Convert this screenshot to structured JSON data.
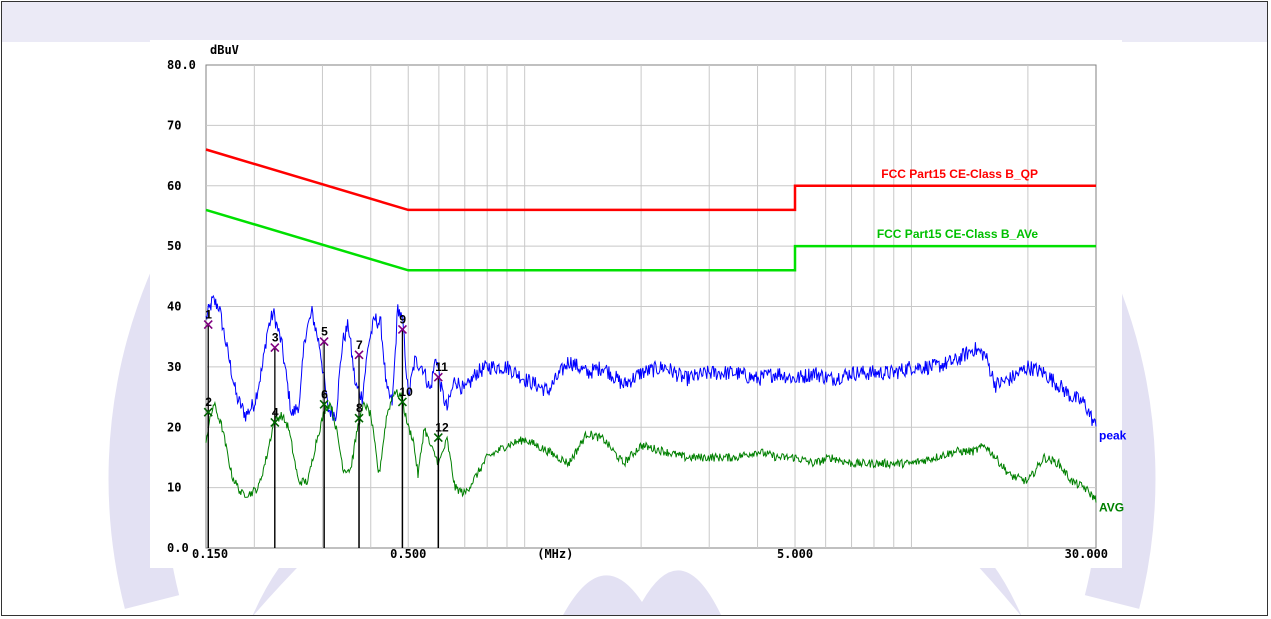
{
  "chart_data": {
    "type": "line",
    "yunit": "dBuV",
    "xunit": "(MHz)",
    "xscale": "log",
    "xlim": [
      0.15,
      30
    ],
    "ylim": [
      0,
      80
    ],
    "y_ticks": [
      {
        "value": 80,
        "label": "80.0"
      },
      {
        "value": 70,
        "label": "70"
      },
      {
        "value": 60,
        "label": "60"
      },
      {
        "value": 50,
        "label": "50"
      },
      {
        "value": 40,
        "label": "40"
      },
      {
        "value": 30,
        "label": "30"
      },
      {
        "value": 20,
        "label": "20"
      },
      {
        "value": 10,
        "label": "10"
      },
      {
        "value": 0,
        "label": "0.0"
      }
    ],
    "x_ticks": [
      {
        "value": 0.15,
        "label": "0.150"
      },
      {
        "value": 0.5,
        "label": "0.500"
      },
      {
        "value": 1.2,
        "label": "(MHz)"
      },
      {
        "value": 5,
        "label": "5.000"
      },
      {
        "value": 30,
        "label": "30.000"
      }
    ],
    "grid": true,
    "limits": [
      {
        "name": "FCC Part15 CE-Class B_QP",
        "color": "#ff0000",
        "points": [
          [
            0.15,
            66
          ],
          [
            0.5,
            56
          ],
          [
            5,
            56
          ],
          [
            5,
            60
          ],
          [
            30,
            60
          ]
        ]
      },
      {
        "name": "FCC Part15 CE-Class B_AVe",
        "color": "#00e000",
        "points": [
          [
            0.15,
            56
          ],
          [
            0.5,
            46
          ],
          [
            5,
            46
          ],
          [
            5,
            50
          ],
          [
            30,
            50
          ]
        ]
      }
    ],
    "series": [
      {
        "name": "peak",
        "color": "#0000ff",
        "noise": 1.3,
        "x": [
          0.15,
          0.156,
          0.162,
          0.17,
          0.18,
          0.19,
          0.2,
          0.21,
          0.216,
          0.224,
          0.235,
          0.25,
          0.262,
          0.27,
          0.282,
          0.296,
          0.31,
          0.325,
          0.338,
          0.35,
          0.365,
          0.38,
          0.395,
          0.41,
          0.425,
          0.44,
          0.455,
          0.47,
          0.485,
          0.5,
          0.52,
          0.545,
          0.57,
          0.59,
          0.61,
          0.63,
          0.66,
          0.7,
          0.75,
          0.8,
          0.9,
          1.0,
          1.15,
          1.3,
          1.45,
          1.6,
          1.8,
          2.0,
          2.3,
          2.6,
          3.0,
          3.5,
          4.0,
          4.5,
          5.0,
          5.6,
          6.2,
          7.0,
          8.0,
          9.0,
          10.0,
          11.5,
          13.0,
          14.5,
          15.5,
          16.5,
          18.0,
          20.0,
          22.0,
          24.0,
          26.0,
          28.0,
          30.0
        ],
        "y": [
          38,
          41,
          40,
          33,
          25,
          22,
          24,
          30,
          36,
          39,
          34,
          22,
          24,
          35,
          39,
          33,
          23,
          22,
          34,
          37,
          27,
          25,
          34,
          38,
          37,
          26,
          24,
          40,
          37,
          25,
          31,
          30,
          26,
          32,
          26,
          23,
          28,
          26,
          29,
          30,
          30,
          28,
          26,
          31,
          29,
          30,
          27,
          29,
          30,
          28,
          29,
          29,
          28,
          29,
          28,
          29,
          28,
          29,
          29,
          29,
          30,
          30,
          31,
          33,
          32,
          27,
          28,
          30,
          29,
          27,
          25,
          24,
          20
        ]
      },
      {
        "name": "AVG",
        "color": "#008000",
        "noise": 0.7,
        "x": [
          0.15,
          0.157,
          0.165,
          0.175,
          0.185,
          0.195,
          0.205,
          0.215,
          0.225,
          0.235,
          0.245,
          0.26,
          0.275,
          0.29,
          0.305,
          0.315,
          0.325,
          0.34,
          0.355,
          0.37,
          0.385,
          0.4,
          0.42,
          0.44,
          0.46,
          0.48,
          0.5,
          0.515,
          0.53,
          0.55,
          0.57,
          0.6,
          0.63,
          0.66,
          0.7,
          0.75,
          0.8,
          0.9,
          1.0,
          1.15,
          1.3,
          1.45,
          1.6,
          1.8,
          2.0,
          2.3,
          2.6,
          3.0,
          3.5,
          4.0,
          4.5,
          5.0,
          5.6,
          6.2,
          7.0,
          8.0,
          9.0,
          10.0,
          11.5,
          13.0,
          14.5,
          15.5,
          16.5,
          18.0,
          20.0,
          22.0,
          24.0,
          26.0,
          28.0,
          30.0
        ],
        "y": [
          18,
          24,
          20,
          12,
          9,
          9,
          10,
          15,
          21,
          22,
          20,
          11,
          11,
          18,
          23,
          24,
          20,
          13,
          13,
          20,
          24,
          22,
          12,
          22,
          26,
          25,
          20,
          18,
          12,
          20,
          17,
          14,
          18,
          10,
          9,
          12,
          15,
          17,
          18,
          16,
          14,
          19,
          18,
          14,
          17,
          16,
          15,
          15,
          15,
          16,
          15,
          15,
          14,
          15,
          14,
          14,
          14,
          14,
          15,
          16,
          16,
          17,
          15,
          12,
          11,
          15,
          14,
          11,
          10,
          8
        ]
      }
    ],
    "markers": [
      {
        "label": "1",
        "x": 0.152,
        "y": 37.0,
        "type": "qp"
      },
      {
        "label": "2",
        "x": 0.152,
        "y": 22.5,
        "type": "avg"
      },
      {
        "label": "3",
        "x": 0.226,
        "y": 33.2,
        "type": "qp"
      },
      {
        "label": "4",
        "x": 0.226,
        "y": 20.8,
        "type": "avg"
      },
      {
        "label": "5",
        "x": 0.303,
        "y": 34.2,
        "type": "qp"
      },
      {
        "label": "6",
        "x": 0.303,
        "y": 23.8,
        "type": "avg"
      },
      {
        "label": "7",
        "x": 0.373,
        "y": 32.0,
        "type": "qp"
      },
      {
        "label": "8",
        "x": 0.373,
        "y": 21.5,
        "type": "avg"
      },
      {
        "label": "9",
        "x": 0.483,
        "y": 36.2,
        "type": "qp"
      },
      {
        "label": "10",
        "x": 0.483,
        "y": 24.2,
        "type": "avg"
      },
      {
        "label": "11",
        "x": 0.598,
        "y": 28.3,
        "type": "qp"
      },
      {
        "label": "12",
        "x": 0.598,
        "y": 18.3,
        "type": "avg"
      }
    ],
    "marker_colors": {
      "qp": "#800080",
      "avg": "#006400"
    }
  }
}
